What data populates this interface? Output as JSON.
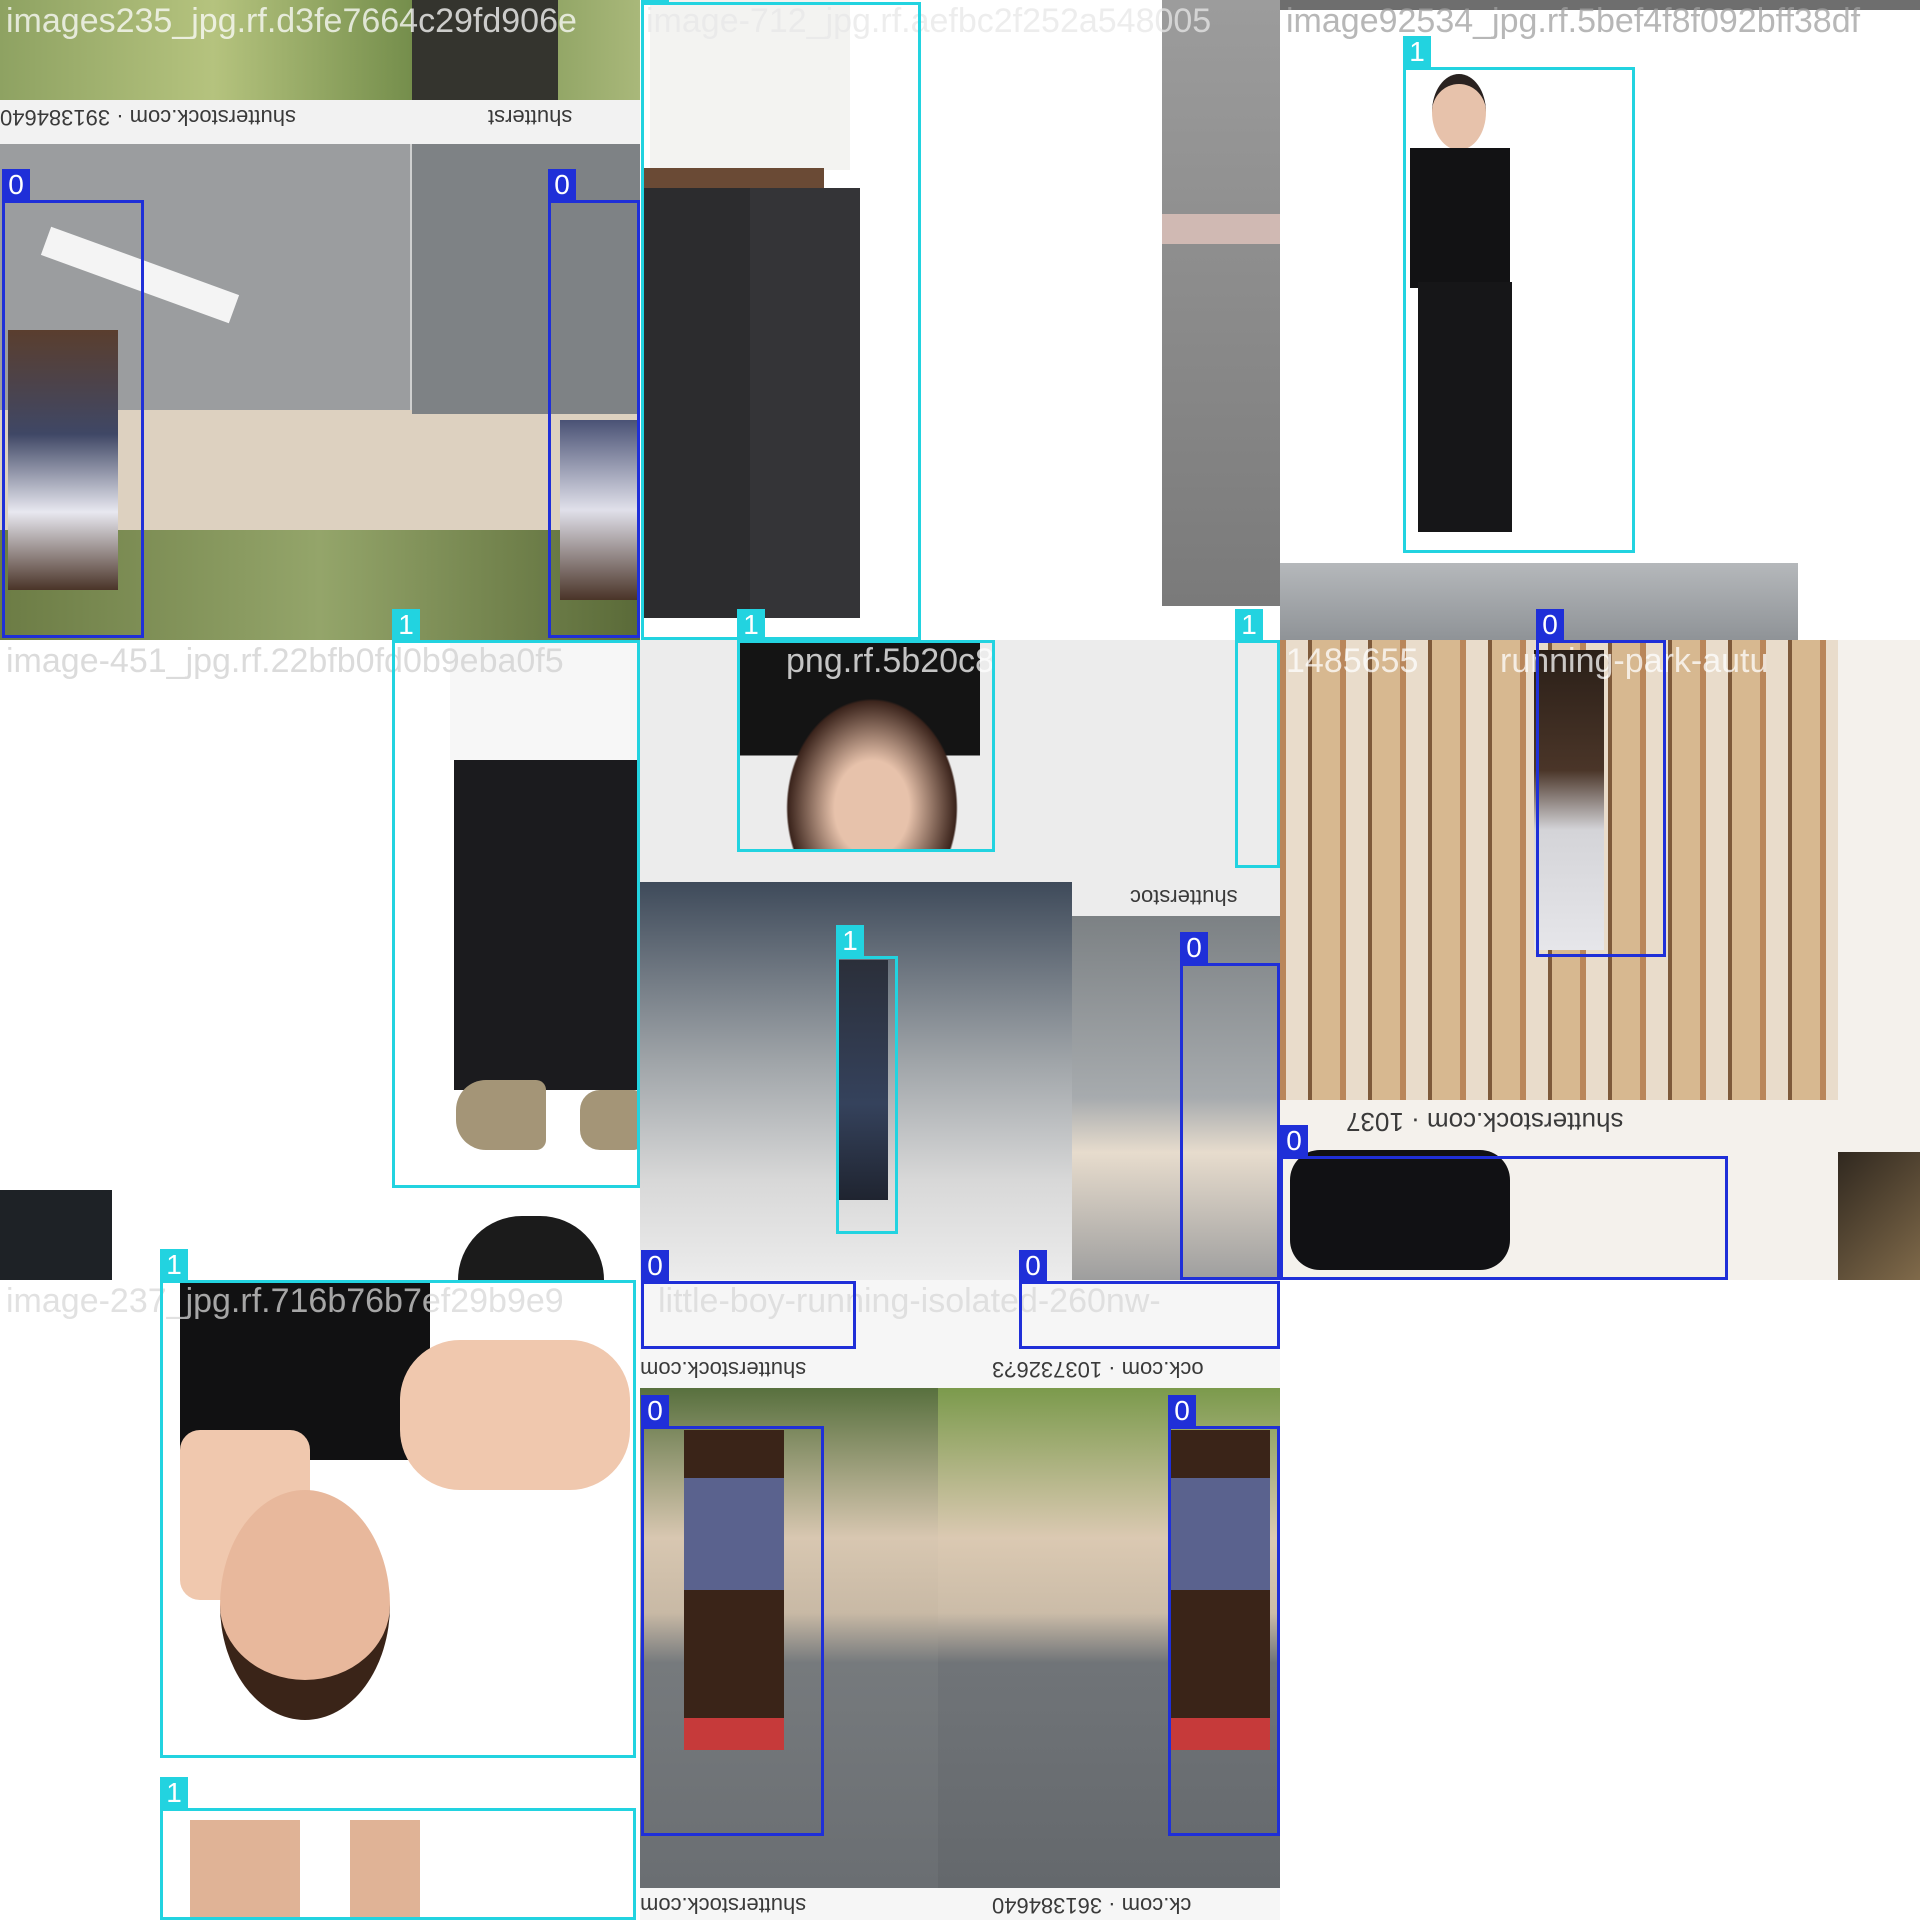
{
  "classes": {
    "0": {
      "color": "#1f2fd8"
    },
    "1": {
      "color": "#22d3e0"
    }
  },
  "filenames": [
    "images235_jpg.rf.d3fe7664c29fd906e",
    "image-712_jpg.rf.aefbc2f252a548005",
    "image92534_jpg.rf.5bef4f8f092bff38df",
    "image-451_jpg.rf.22bfb0fd0b9eba0f5",
    "png.rf.5b20c8",
    "1485655",
    "running-park-autu",
    "image-237_jpg.rf.716b76b7ef29b9e9",
    "little-boy-running-isolated-260nw-"
  ],
  "watermarks": [
    "shutterstock.com · 391384640",
    "shutterst",
    "shutterstoc",
    "shutterstock.com · 1037",
    "shutterstock.com",
    "ock.com · 1037326?3",
    "shutterstock.com",
    "ck.com · 361384640"
  ],
  "boxes": [
    {
      "class": "0"
    },
    {
      "class": "0"
    },
    {
      "class": "1"
    },
    {
      "class": "1"
    },
    {
      "class": "1"
    },
    {
      "class": "1"
    },
    {
      "class": "1"
    },
    {
      "class": "0"
    },
    {
      "class": "1"
    },
    {
      "class": "0"
    },
    {
      "class": "0"
    },
    {
      "class": "1"
    },
    {
      "class": "0"
    },
    {
      "class": "0"
    },
    {
      "class": "0"
    },
    {
      "class": "0"
    },
    {
      "class": "1"
    }
  ]
}
